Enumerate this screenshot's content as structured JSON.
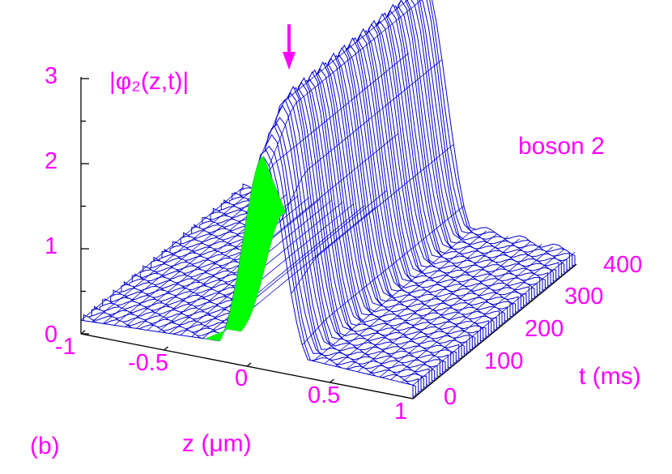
{
  "chart_data": {
    "type": "surface3d",
    "panel_label": "(b)",
    "zlabel": "|φ₂(z,t)|",
    "annotation": "boson 2",
    "xlabel": "z (μm)",
    "ylabel": "t (ms)",
    "x_ticks": [
      "-1",
      "-0.5",
      "0",
      "0.5",
      "1"
    ],
    "y_ticks": [
      "0",
      "100",
      "200",
      "300",
      "400"
    ],
    "z_ticks": [
      "0",
      "1",
      "2",
      "3"
    ],
    "xlim": [
      -1,
      1
    ],
    "ylim": [
      0,
      400
    ],
    "zlim": [
      0,
      3
    ],
    "colors": {
      "text": "#ff00ff",
      "surface_lines": "#0000cc",
      "underside": "#00ff00",
      "axes": "#000000"
    },
    "marker": "arrow pointing down at the peak near t = 0",
    "series": [
      {
        "t_range": [
          0,
          400
        ],
        "peak_z": 0.1,
        "peak_height": [
          2.5,
          3.0
        ],
        "width": 0.12,
        "baseline": 0.25
      }
    ]
  }
}
